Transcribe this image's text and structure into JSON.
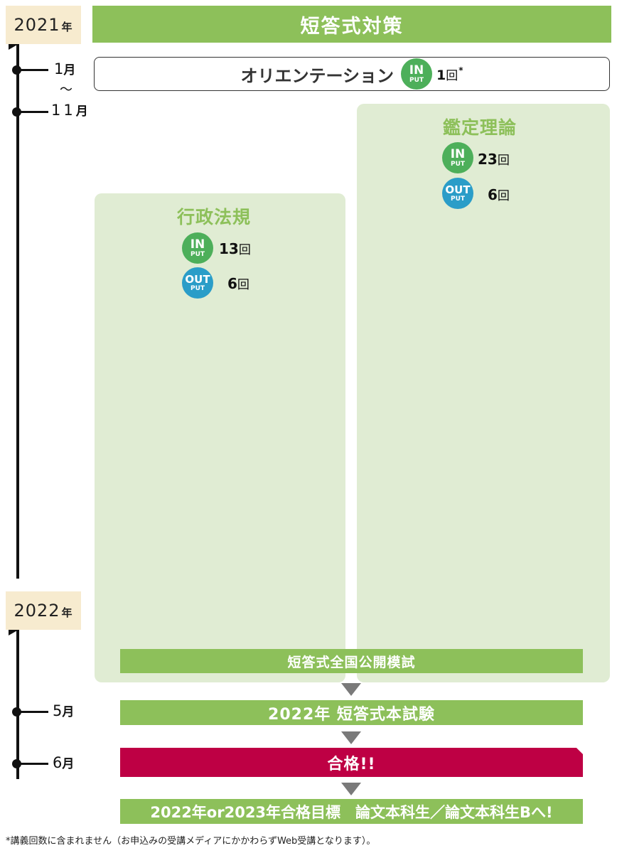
{
  "years": [
    "2021",
    "2022"
  ],
  "nen": "年",
  "months": {
    "jan": "1",
    "tilde": "～",
    "nov": "11",
    "may": "5",
    "jun": "6",
    "getsu": "月"
  },
  "header": {
    "title": "短答式対策"
  },
  "orientation": {
    "label": "オリエンテーション",
    "count": "1",
    "kai": "回",
    "note_mark": "*"
  },
  "badges": {
    "in_big": "IN",
    "in_small": "PUT",
    "out_big": "OUT",
    "out_small": "PUT"
  },
  "subjects": {
    "gyosei": {
      "title": "行政法規",
      "input_count": "13",
      "output_count": "6"
    },
    "kantei": {
      "title": "鑑定理論",
      "input_count": "23",
      "output_count": "6"
    }
  },
  "kai": "回",
  "bars": {
    "mock_exam": "短答式全国公開模試",
    "exam": "2022年 短答式本試験",
    "pass": "合格!!",
    "next": "2022年or2023年合格目標　論文本科生／論文本科生Bへ!"
  },
  "footnote": "*講義回数に含まれません（お申込みの受講メディアにかかわらずWeb受講となります）。",
  "colors": {
    "green": "#8dc05a",
    "panel": "#e0ecd3",
    "red": "#be0044",
    "input": "#4daf5a",
    "output": "#2a9dc8",
    "year_bg": "#f7ebcf"
  }
}
